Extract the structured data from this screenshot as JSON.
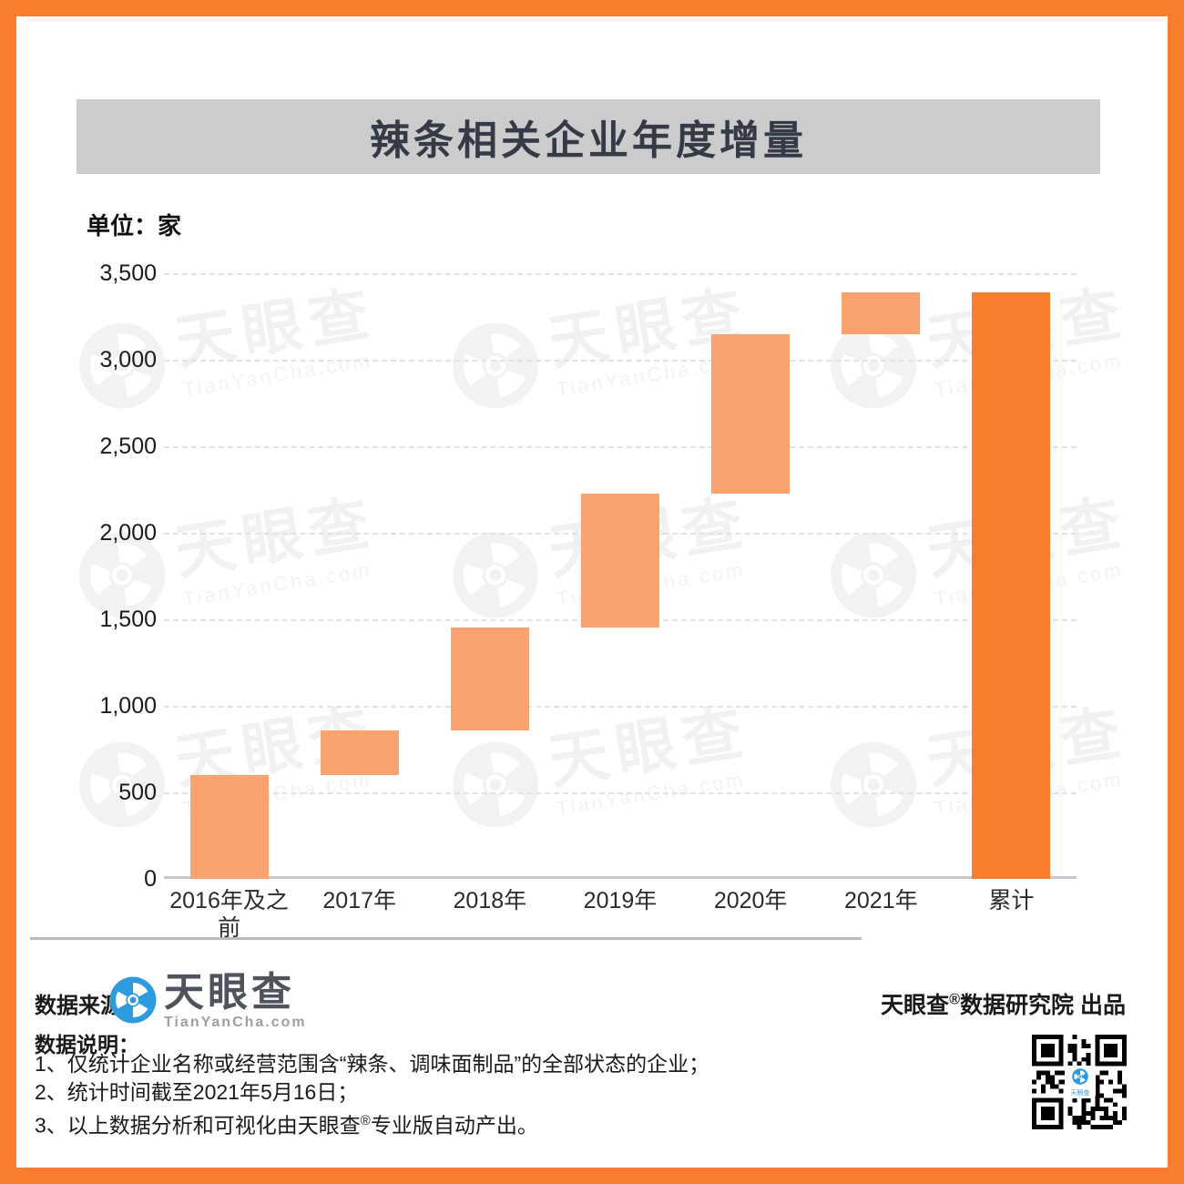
{
  "page": {
    "frame_color": "#F87D2C",
    "background": "#FFFFFF",
    "title": "辣条相关企业年度增量"
  },
  "chart_data": {
    "type": "bar",
    "subtype": "waterfall",
    "title": "辣条相关企业年度增量",
    "unit_label": "单位：家",
    "categories": [
      "2016年及之前",
      "2017年",
      "2018年",
      "2019年",
      "2020年",
      "2021年",
      "累计"
    ],
    "segments": [
      {
        "category": "2016年及之前",
        "start": 0,
        "end": 600,
        "delta": 600,
        "role": "increment"
      },
      {
        "category": "2017年",
        "start": 600,
        "end": 860,
        "delta": 260,
        "role": "increment"
      },
      {
        "category": "2018年",
        "start": 860,
        "end": 1455,
        "delta": 595,
        "role": "increment"
      },
      {
        "category": "2019年",
        "start": 1455,
        "end": 2225,
        "delta": 770,
        "role": "increment"
      },
      {
        "category": "2020年",
        "start": 2225,
        "end": 3145,
        "delta": 920,
        "role": "increment"
      },
      {
        "category": "2021年",
        "start": 3145,
        "end": 3390,
        "delta": 245,
        "role": "increment"
      },
      {
        "category": "累计",
        "start": 0,
        "end": 3390,
        "delta": 3390,
        "role": "total"
      }
    ],
    "values_estimated_from_pixels": true,
    "ylim": [
      0,
      3500
    ],
    "y_ticks": [
      {
        "value": 3500,
        "label": "3,500"
      },
      {
        "value": 3000,
        "label": "3,000"
      },
      {
        "value": 2500,
        "label": "2,500"
      },
      {
        "value": 2000,
        "label": "2,000"
      },
      {
        "value": 1500,
        "label": "1,500"
      },
      {
        "value": 1000,
        "label": "1,000"
      },
      {
        "value": 500,
        "label": "500"
      },
      {
        "value": 0,
        "label": "0"
      }
    ],
    "grid": "horizontal-dashed",
    "legend": "none",
    "colors": {
      "increment": "#FAA36E",
      "total": "#F87D2C",
      "gridline": "#E2E2E2",
      "axis": "#C9C9C9"
    }
  },
  "watermark": {
    "brand": "天眼查",
    "domain": "TianYanCha.com"
  },
  "footer": {
    "source_label": "数据来源：",
    "brand_logo": {
      "zh": "天眼查",
      "en": "TianYanCha.com",
      "icon_color": "#2E9BDF"
    },
    "producer": {
      "pre": "天眼查",
      "reg": "®",
      "post": "数据研究院 出品"
    },
    "notes_label": "数据说明：",
    "notes": [
      {
        "pre": "1、仅统计企业名称或经营范围含“辣条、调味面制品”的全部状态的企业；",
        "reg": "",
        "post": ""
      },
      {
        "pre": "2、统计时间截至2021年5月16日；",
        "reg": "",
        "post": ""
      },
      {
        "pre": "3、以上数据分析和可视化由天眼查",
        "reg": "®",
        "post": "专业版自动产出。"
      }
    ]
  }
}
